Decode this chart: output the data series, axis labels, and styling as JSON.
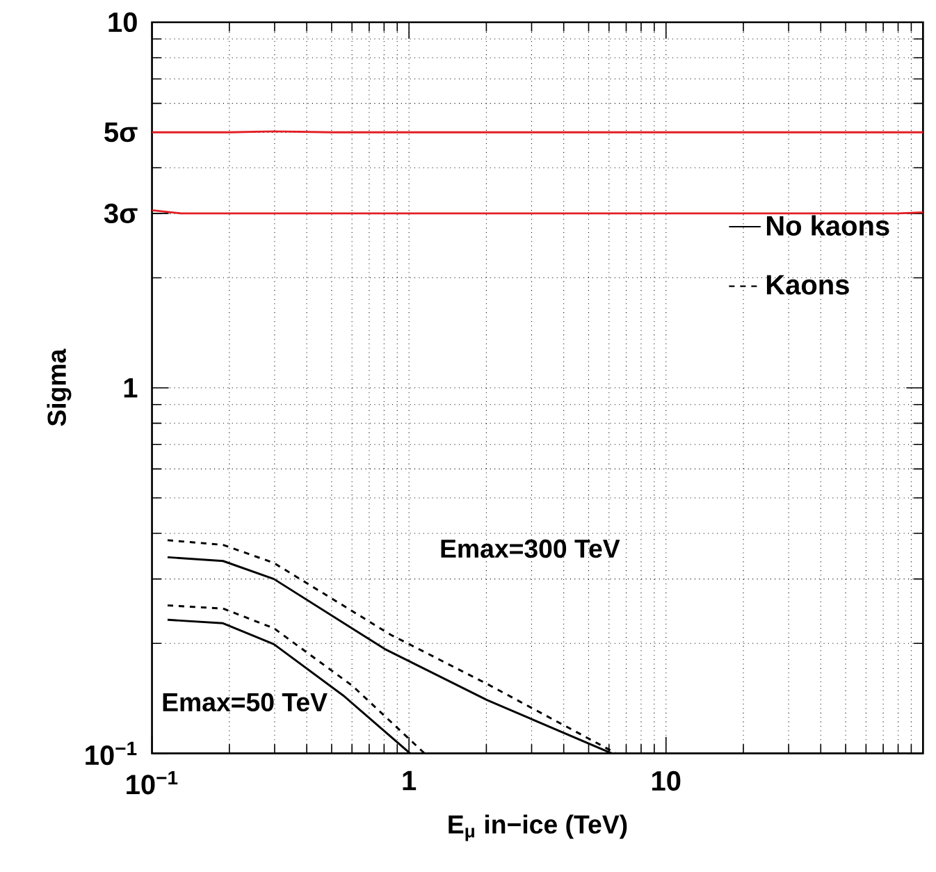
{
  "chart_data": {
    "type": "line",
    "xlabel": "E$_{μ}$ in−ice (TeV)",
    "ylabel": "Sigma",
    "log": "xy",
    "grid": true,
    "legend": "right",
    "line_style": "solid",
    "xlim": [
      0.1,
      100
    ],
    "ylim": [
      0.1,
      10
    ],
    "xticks": [
      {
        "value": 0.1,
        "label": "10$^{−1}$"
      },
      1,
      10
    ],
    "yticks": [
      {
        "value": 0.1,
        "label": "10$^{−1}$"
      },
      1,
      {
        "value": 3,
        "label": "3σ"
      },
      {
        "value": 5,
        "label": "5σ"
      },
      10
    ],
    "series": [
      {
        "color": "#e31e24",
        "x": [
          0.1,
          0.2,
          0.3,
          0.5,
          1,
          10,
          100
        ],
        "values": [
          5,
          5,
          5.03,
          5,
          5,
          5,
          5
        ]
      },
      {
        "color": "#e31e24",
        "x": [
          0.1,
          0.13,
          0.3,
          1,
          10,
          80,
          100
        ],
        "values": [
          3.06,
          3,
          3,
          3,
          3,
          3,
          3.02
        ]
      },
      {
        "name": "No kaons",
        "color": "#000000",
        "line_style": "solid",
        "x": [
          0.115,
          0.189,
          0.298,
          0.805,
          2.01,
          6.15
        ],
        "values": [
          0.344,
          0.336,
          0.3,
          0.193,
          0.14,
          0.1
        ]
      },
      {
        "name": "Kaons",
        "color": "#000000",
        "line_style": "dashed",
        "x": [
          0.115,
          0.189,
          0.298,
          0.85,
          2.01,
          6.4
        ],
        "values": [
          0.383,
          0.372,
          0.332,
          0.211,
          0.155,
          0.1
        ]
      },
      {
        "color": "#000000",
        "line_style": "solid",
        "x": [
          0.115,
          0.189,
          0.298,
          0.555,
          1.01
        ],
        "values": [
          0.232,
          0.227,
          0.199,
          0.144,
          0.1
        ]
      },
      {
        "color": "#000000",
        "line_style": "dashed",
        "x": [
          0.115,
          0.189,
          0.298,
          0.603,
          1.15
        ],
        "values": [
          0.254,
          0.249,
          0.22,
          0.153,
          0.1
        ]
      }
    ],
    "annotations": [
      "Emax=300 TeV",
      "Emax=50 TeV"
    ]
  }
}
